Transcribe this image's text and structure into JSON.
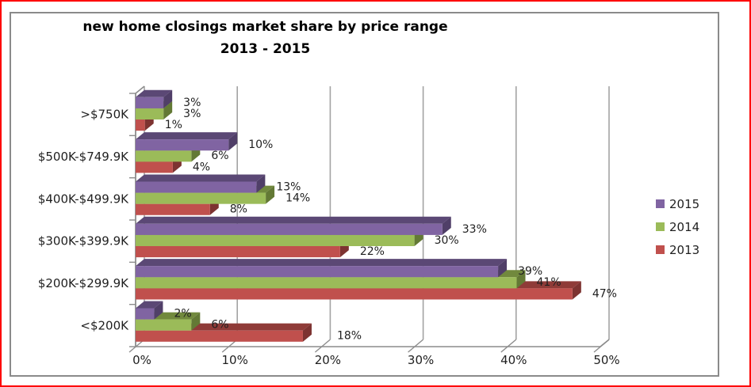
{
  "frame": {
    "outer_border_color": "#fe0000",
    "inner_border_color": "#8a8a8a",
    "background": "#ffffff"
  },
  "title": {
    "line1": "new home closings market share by price range",
    "line2": "2013 - 2015"
  },
  "chart_data": {
    "type": "bar",
    "orientation": "horizontal",
    "style": "3d",
    "title": "new home closings market share by price range 2013 - 2015",
    "categories": [
      ">$750K",
      "$500K-$749.9K",
      "$400K-$499.9K",
      "$300K-$399.9K",
      "$200K-$299.9K",
      "<$200K"
    ],
    "series": [
      {
        "name": "2015",
        "color": "#8064A2",
        "top_color": "#5B4875",
        "side_color": "#503F68",
        "values": [
          3,
          10,
          13,
          33,
          39,
          2
        ]
      },
      {
        "name": "2014",
        "color": "#9BBB59",
        "top_color": "#71893D",
        "side_color": "#637935",
        "values": [
          3,
          6,
          14,
          30,
          41,
          6
        ]
      },
      {
        "name": "2013",
        "color": "#C0504D",
        "top_color": "#8F3B38",
        "side_color": "#7D3331",
        "values": [
          1,
          4,
          8,
          22,
          47,
          18
        ],
        "label_dx": [
          0,
          0,
          0,
          0,
          0,
          18
        ]
      }
    ],
    "data_label_format": "{v}%",
    "x_axis": {
      "ticks": [
        "0%",
        "10%",
        "20%",
        "30%",
        "40%",
        "50%"
      ],
      "min": 0,
      "max": 50,
      "gridlines": true
    },
    "legend": {
      "position": "right",
      "entries": [
        "2015",
        "2014",
        "2013"
      ]
    },
    "colors": {
      "gridline": "#a3a3a3",
      "axis": "#8c8c8c",
      "label_text": "#1f1f1f"
    }
  }
}
